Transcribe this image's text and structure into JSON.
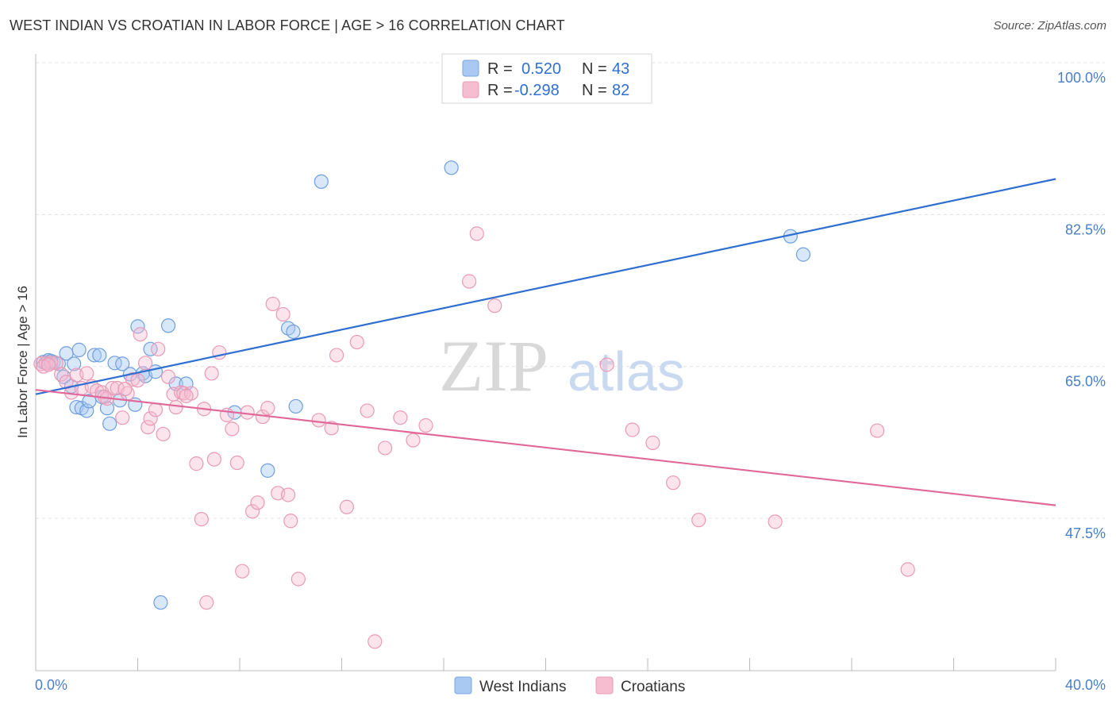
{
  "title": "WEST INDIAN VS CROATIAN IN LABOR FORCE | AGE > 16 CORRELATION CHART",
  "source": "Source: ZipAtlas.com",
  "watermark": {
    "zip": "ZIP",
    "atlas": "atlas"
  },
  "colors": {
    "blue": "#2f6fd1",
    "blue_fill": "#a9c9f3",
    "pink": "#e0699a",
    "pink_fill": "#f6bcd0"
  },
  "legend": {
    "rows": [
      {
        "r_label": "R =",
        "r_value": "0.520",
        "n_label": "N =",
        "n_value": "43"
      },
      {
        "r_label": "R =",
        "r_value": "-0.298",
        "n_label": "N =",
        "n_value": "82"
      }
    ]
  },
  "chart_data": {
    "type": "scatter",
    "title": "WEST INDIAN VS CROATIAN IN LABOR FORCE | AGE > 16 CORRELATION CHART",
    "xlabel": "",
    "ylabel": "In Labor Force | Age > 16",
    "xlim": [
      0,
      40
    ],
    "ylim": [
      30,
      102
    ],
    "x_tick_labels": [
      "0.0%",
      "40.0%"
    ],
    "y_ticks": [
      47.5,
      65.0,
      82.5,
      100.0
    ],
    "y_tick_labels": [
      "47.5%",
      "65.0%",
      "82.5%",
      "100.0%"
    ],
    "grid": true,
    "legend_position": "top-center",
    "series": [
      {
        "name": "West Indians",
        "color": "#2f6fd1",
        "trend": {
          "x": [
            0,
            40
          ],
          "y": [
            61.8,
            86.6
          ]
        },
        "points": [
          [
            0.3,
            65.5
          ],
          [
            0.5,
            65.7
          ],
          [
            0.7,
            65.5
          ],
          [
            0.9,
            65.3
          ],
          [
            1.1,
            63.8
          ],
          [
            1.2,
            66.5
          ],
          [
            1.4,
            62.7
          ],
          [
            1.5,
            65.3
          ],
          [
            1.6,
            60.3
          ],
          [
            1.7,
            66.9
          ],
          [
            1.8,
            60.2
          ],
          [
            2.0,
            59.9
          ],
          [
            2.1,
            61.0
          ],
          [
            2.3,
            66.3
          ],
          [
            2.5,
            66.3
          ],
          [
            2.6,
            61.5
          ],
          [
            2.8,
            60.2
          ],
          [
            2.9,
            58.4
          ],
          [
            3.1,
            65.4
          ],
          [
            3.3,
            61.1
          ],
          [
            3.4,
            65.3
          ],
          [
            3.7,
            64.1
          ],
          [
            3.9,
            60.6
          ],
          [
            4.0,
            69.6
          ],
          [
            4.2,
            64.2
          ],
          [
            4.3,
            63.9
          ],
          [
            4.5,
            67.0
          ],
          [
            4.7,
            64.4
          ],
          [
            4.9,
            37.8
          ],
          [
            5.2,
            69.7
          ],
          [
            5.5,
            63.0
          ],
          [
            5.9,
            63.0
          ],
          [
            7.8,
            59.7
          ],
          [
            9.1,
            53.0
          ],
          [
            9.9,
            69.4
          ],
          [
            10.1,
            69.0
          ],
          [
            10.2,
            60.4
          ],
          [
            11.2,
            86.3
          ],
          [
            16.3,
            87.9
          ],
          [
            29.6,
            80.0
          ],
          [
            30.1,
            77.9
          ],
          [
            0.4,
            65.4
          ],
          [
            0.6,
            65.6
          ]
        ]
      },
      {
        "name": "Croatians",
        "color": "#e0699a",
        "trend": {
          "x": [
            0,
            40
          ],
          "y": [
            62.3,
            49.0
          ]
        },
        "points": [
          [
            0.2,
            65.3
          ],
          [
            0.4,
            65.4
          ],
          [
            0.6,
            65.4
          ],
          [
            0.8,
            65.4
          ],
          [
            1.0,
            64.1
          ],
          [
            1.2,
            63.2
          ],
          [
            1.4,
            62.0
          ],
          [
            1.6,
            64.0
          ],
          [
            1.8,
            62.5
          ],
          [
            2.0,
            64.2
          ],
          [
            2.2,
            62.7
          ],
          [
            2.4,
            62.2
          ],
          [
            2.6,
            62.0
          ],
          [
            2.8,
            61.3
          ],
          [
            3.0,
            62.5
          ],
          [
            3.2,
            62.5
          ],
          [
            3.4,
            59.1
          ],
          [
            3.6,
            61.9
          ],
          [
            3.8,
            63.5
          ],
          [
            4.0,
            63.4
          ],
          [
            4.1,
            68.7
          ],
          [
            4.3,
            65.4
          ],
          [
            4.4,
            58.0
          ],
          [
            4.5,
            59.0
          ],
          [
            4.7,
            60.0
          ],
          [
            4.8,
            67.0
          ],
          [
            5.0,
            57.2
          ],
          [
            5.2,
            63.8
          ],
          [
            5.4,
            61.8
          ],
          [
            5.5,
            60.3
          ],
          [
            5.7,
            62.0
          ],
          [
            5.8,
            61.9
          ],
          [
            6.1,
            61.9
          ],
          [
            6.3,
            53.8
          ],
          [
            6.5,
            47.4
          ],
          [
            6.6,
            60.1
          ],
          [
            6.7,
            37.8
          ],
          [
            6.9,
            64.2
          ],
          [
            7.0,
            54.3
          ],
          [
            7.2,
            66.6
          ],
          [
            7.5,
            59.4
          ],
          [
            7.7,
            57.8
          ],
          [
            7.9,
            53.9
          ],
          [
            8.1,
            41.4
          ],
          [
            8.3,
            59.7
          ],
          [
            8.5,
            48.3
          ],
          [
            8.7,
            49.3
          ],
          [
            8.9,
            59.2
          ],
          [
            9.1,
            60.2
          ],
          [
            9.3,
            72.2
          ],
          [
            9.5,
            50.4
          ],
          [
            9.7,
            71.0
          ],
          [
            9.9,
            50.2
          ],
          [
            10.0,
            47.2
          ],
          [
            10.3,
            40.5
          ],
          [
            11.1,
            58.8
          ],
          [
            11.6,
            57.9
          ],
          [
            11.8,
            66.3
          ],
          [
            12.2,
            48.8
          ],
          [
            12.6,
            67.8
          ],
          [
            13.0,
            59.9
          ],
          [
            13.3,
            33.3
          ],
          [
            13.7,
            55.6
          ],
          [
            14.3,
            59.1
          ],
          [
            14.8,
            56.5
          ],
          [
            15.3,
            58.2
          ],
          [
            17.0,
            74.8
          ],
          [
            17.3,
            80.3
          ],
          [
            18.0,
            72.0
          ],
          [
            22.4,
            65.2
          ],
          [
            23.4,
            57.7
          ],
          [
            24.2,
            56.2
          ],
          [
            25.0,
            51.6
          ],
          [
            26.0,
            47.3
          ],
          [
            29.0,
            47.1
          ],
          [
            33.0,
            57.6
          ],
          [
            34.2,
            41.6
          ],
          [
            2.7,
            61.5
          ],
          [
            3.5,
            62.4
          ],
          [
            5.9,
            61.6
          ],
          [
            0.3,
            65.0
          ],
          [
            0.5,
            65.2
          ]
        ]
      }
    ]
  }
}
